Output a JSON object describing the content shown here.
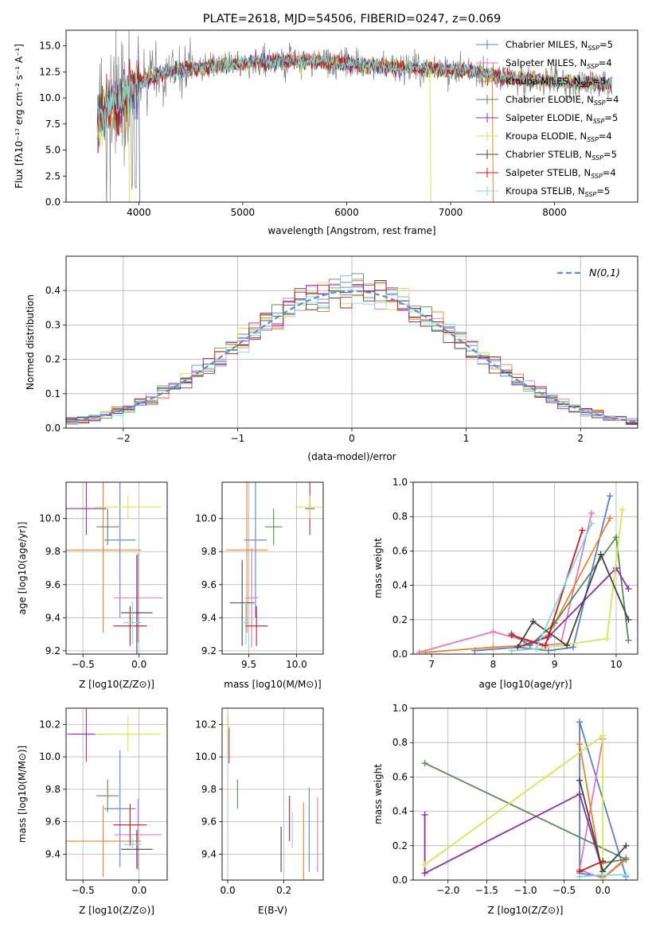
{
  "chart_data": [
    {
      "id": "spectrum",
      "type": "line",
      "title": "PLATE=2618, MJD=54506, FIBERID=0247, z=0.069",
      "xlabel": "wavelength [Angstrom, rest frame]",
      "ylabel": "Flux [fλ10⁻¹⁷ erg cm⁻² s⁻¹ A⁻¹]",
      "xlim": [
        3300,
        8800
      ],
      "ylim": [
        0,
        16.5
      ],
      "xticks": [
        4000,
        5000,
        6000,
        7000,
        8000
      ],
      "yticks": [
        0.0,
        2.5,
        5.0,
        7.5,
        10.0,
        12.5,
        15.0
      ],
      "grid": false,
      "legend_position": "right",
      "series": [
        {
          "name": "Chabrier MILES, N",
          "sub": "SSP",
          "suffix": "=5",
          "color": "#5b7fd6",
          "x_range": [
            3600,
            8550
          ]
        },
        {
          "name": "Salpeter MILES, N",
          "sub": "SSP",
          "suffix": "=4",
          "color": "#e377c2",
          "x_range": [
            3600,
            8550
          ]
        },
        {
          "name": "Kroupa MILES, N",
          "sub": "SSP",
          "suffix": "=5",
          "color": "#e8842b",
          "x_range": [
            3600,
            8550
          ]
        },
        {
          "name": "Chabrier ELODIE, N",
          "sub": "SSP",
          "suffix": "=4",
          "color": "#5a8a5a",
          "x_range": [
            3600,
            8550
          ]
        },
        {
          "name": "Salpeter ELODIE, N",
          "sub": "SSP",
          "suffix": "=5",
          "color": "#8e2fa8",
          "x_range": [
            3600,
            8550
          ]
        },
        {
          "name": "Kroupa ELODIE, N",
          "sub": "SSP",
          "suffix": "=4",
          "color": "#d4e84e",
          "x_range": [
            3600,
            8550
          ]
        },
        {
          "name": "Chabrier STELIB, N",
          "sub": "SSP",
          "suffix": "=5",
          "color": "#444444",
          "x_range": [
            3600,
            8550
          ]
        },
        {
          "name": "Salpeter STELIB, N",
          "sub": "SSP",
          "suffix": "=4",
          "color": "#c41a1a",
          "x_range": [
            3600,
            8550
          ]
        },
        {
          "name": "Kroupa STELIB, N",
          "sub": "SSP",
          "suffix": "=5",
          "color": "#7fd8e0",
          "x_range": [
            3600,
            8550
          ]
        }
      ],
      "data_series": {
        "color": "#7f7f7f",
        "x_range": [
          3600,
          8550
        ]
      },
      "continuum": {
        "x": [
          3600,
          3700,
          3900,
          4000,
          4300,
          4700,
          5000,
          5500,
          6000,
          6500,
          6800,
          7200,
          7500,
          8000,
          8550
        ],
        "y": [
          8,
          9,
          10.5,
          11.5,
          12.6,
          13.0,
          13.3,
          13.6,
          13.3,
          12.9,
          12.8,
          12.6,
          12.0,
          11.6,
          11.3
        ]
      }
    },
    {
      "id": "residuals",
      "type": "histogram",
      "xlabel": "(data-model)/error",
      "ylabel": "Normed distribution",
      "xlim": [
        -2.5,
        2.5
      ],
      "ylim": [
        0,
        0.5
      ],
      "xticks": [
        -2,
        -1,
        0,
        1,
        2
      ],
      "yticks": [
        0.0,
        0.1,
        0.2,
        0.3,
        0.4
      ],
      "grid": true,
      "legend_position": "top-right",
      "legend_label": "N(0,1)",
      "reference_curve": {
        "name": "N(0,1)",
        "color": "#5b8fd6",
        "dash": "dashed"
      },
      "bin_width": 0.1,
      "colors": [
        "#5b7fd6",
        "#e377c2",
        "#e8842b",
        "#5a8a5a",
        "#8e2fa8",
        "#d4e84e",
        "#444444",
        "#c41a1a",
        "#7fd8e0"
      ]
    },
    {
      "id": "age_vs_Z",
      "type": "errorbar",
      "xlabel": "Z [log10(Z/Z⊙)]",
      "ylabel": "age [log10(age/yr)]",
      "xlim": [
        -0.65,
        0.25
      ],
      "ylim": [
        9.18,
        10.22
      ],
      "xticks": [
        -0.5,
        0.0
      ],
      "yticks": [
        9.2,
        9.4,
        9.6,
        9.8,
        10.0
      ],
      "grid": true,
      "points": [
        {
          "x": -0.17,
          "y": 9.87,
          "xerr": 0.14,
          "yerr": 0.47,
          "color": "#5b7fd6"
        },
        {
          "x": -0.01,
          "y": 9.52,
          "xerr": 0.22,
          "yerr": 0.27,
          "color": "#e377c2"
        },
        {
          "x": -0.32,
          "y": 9.81,
          "xerr": 0.34,
          "yerr": 0.5,
          "color": "#e8842b"
        },
        {
          "x": -0.28,
          "y": 9.95,
          "xerr": 0.1,
          "yerr": 0.11,
          "color": "#5a8a5a"
        },
        {
          "x": -0.47,
          "y": 10.06,
          "xerr": 0.18,
          "yerr": 0.16,
          "color": "#8e2fa8"
        },
        {
          "x": -0.1,
          "y": 10.07,
          "xerr": 0.3,
          "yerr": 0.07,
          "color": "#d4e84e"
        },
        {
          "x": -0.02,
          "y": 9.43,
          "xerr": 0.14,
          "yerr": 0.35,
          "color": "#444444"
        },
        {
          "x": -0.08,
          "y": 9.35,
          "xerr": 0.15,
          "yerr": 0.12,
          "color": "#c41a1a"
        },
        {
          "x": -0.06,
          "y": 9.37,
          "xerr": 0.08,
          "yerr": 0.13,
          "color": "#7fd8e0"
        }
      ]
    },
    {
      "id": "age_vs_mass",
      "type": "errorbar",
      "xlabel": "mass [log10(M/M⊙)]",
      "ylabel": "",
      "xlim": [
        9.22,
        10.28
      ],
      "ylim": [
        9.18,
        10.22
      ],
      "xticks": [
        9.5,
        10.0
      ],
      "yticks": [
        9.2,
        9.4,
        9.6,
        9.8,
        10.0
      ],
      "grid": true,
      "points": [
        {
          "x": 9.57,
          "y": 9.87,
          "xerr": 0.12,
          "yerr": 0.47,
          "color": "#5b7fd6"
        },
        {
          "x": 9.53,
          "y": 9.52,
          "xerr": 0.07,
          "yerr": 0.3,
          "color": "#e377c2"
        },
        {
          "x": 9.48,
          "y": 9.81,
          "xerr": 0.22,
          "yerr": 0.5,
          "color": "#e8842b"
        },
        {
          "x": 9.76,
          "y": 9.95,
          "xerr": 0.09,
          "yerr": 0.11,
          "color": "#5a8a5a"
        },
        {
          "x": 10.14,
          "y": 10.06,
          "xerr": 0.05,
          "yerr": 0.16,
          "color": "#8e2fa8"
        },
        {
          "x": 10.14,
          "y": 10.07,
          "xerr": 0.15,
          "yerr": 0.07,
          "color": "#d4e84e"
        },
        {
          "x": 9.43,
          "y": 9.49,
          "xerr": 0.13,
          "yerr": 0.26,
          "color": "#444444"
        },
        {
          "x": 9.58,
          "y": 9.35,
          "xerr": 0.12,
          "yerr": 0.12,
          "color": "#c41a1a"
        },
        {
          "x": 9.47,
          "y": 9.37,
          "xerr": 0.04,
          "yerr": 0.13,
          "color": "#7fd8e0"
        }
      ]
    },
    {
      "id": "mw_vs_age",
      "type": "line",
      "xlabel": "age [log10(age/yr)]",
      "ylabel": "mass weight",
      "xlim": [
        6.7,
        10.35
      ],
      "ylim": [
        0,
        1.0
      ],
      "xticks": [
        7,
        8,
        9,
        10
      ],
      "yticks": [
        0.0,
        0.2,
        0.4,
        0.6,
        0.8,
        1.0
      ],
      "grid": true,
      "series": [
        {
          "color": "#5b7fd6",
          "x": [
            7.7,
            8.4,
            8.9,
            9.3,
            9.9
          ],
          "y": [
            0.02,
            0.04,
            0.02,
            0.04,
            0.92
          ]
        },
        {
          "color": "#e377c2",
          "x": [
            6.8,
            8.0,
            8.8,
            9.1,
            9.6
          ],
          "y": [
            0.01,
            0.13,
            0.05,
            0.06,
            0.82
          ]
        },
        {
          "color": "#e8842b",
          "x": [
            6.9,
            8.0,
            8.5,
            8.9,
            9.9
          ],
          "y": [
            0.01,
            0.04,
            0.05,
            0.11,
            0.79
          ]
        },
        {
          "color": "#5a8a5a",
          "x": [
            8.3,
            8.6,
            9.0,
            10.0,
            10.2
          ],
          "y": [
            0.12,
            0.05,
            0.18,
            0.68,
            0.08
          ]
        },
        {
          "color": "#8e2fa8",
          "x": [
            8.4,
            8.9,
            10.0,
            10.2
          ],
          "y": [
            0.04,
            0.1,
            0.5,
            0.38
          ]
        },
        {
          "color": "#d4e84e",
          "x": [
            8.7,
            9.1,
            9.85,
            10.1
          ],
          "y": [
            0.03,
            0.05,
            0.09,
            0.84
          ]
        },
        {
          "color": "#444444",
          "x": [
            8.4,
            8.65,
            9.2,
            9.75,
            10.2
          ],
          "y": [
            0.04,
            0.19,
            0.05,
            0.58,
            0.2
          ]
        },
        {
          "color": "#c41a1a",
          "x": [
            8.3,
            8.85,
            9.45
          ],
          "y": [
            0.11,
            0.05,
            0.72
          ]
        },
        {
          "color": "#7fd8e0",
          "x": [
            8.3,
            8.7,
            9.6
          ],
          "y": [
            0.02,
            0.03,
            0.76
          ]
        }
      ]
    },
    {
      "id": "mass_vs_Z",
      "type": "errorbar",
      "xlabel": "Z [log10(Z/Z⊙)]",
      "ylabel": "mass [log10(M/M⊙)]",
      "xlim": [
        -0.65,
        0.25
      ],
      "ylim": [
        9.24,
        10.3
      ],
      "xticks": [
        -0.5,
        0.0
      ],
      "yticks": [
        9.4,
        9.6,
        9.8,
        10.0,
        10.2
      ],
      "grid": true,
      "points": [
        {
          "x": -0.17,
          "y": 9.68,
          "xerr": 0.14,
          "yerr": 0.36,
          "color": "#5b7fd6"
        },
        {
          "x": -0.01,
          "y": 9.52,
          "xerr": 0.21,
          "yerr": 0.22,
          "color": "#e377c2"
        },
        {
          "x": -0.32,
          "y": 9.48,
          "xerr": 0.34,
          "yerr": 0.22,
          "color": "#e8842b"
        },
        {
          "x": -0.28,
          "y": 9.76,
          "xerr": 0.1,
          "yerr": 0.1,
          "color": "#5a8a5a"
        },
        {
          "x": -0.47,
          "y": 10.14,
          "xerr": 0.17,
          "yerr": 0.17,
          "color": "#8e2fa8"
        },
        {
          "x": -0.1,
          "y": 10.14,
          "xerr": 0.29,
          "yerr": 0.11,
          "color": "#d4e84e"
        },
        {
          "x": -0.02,
          "y": 9.43,
          "xerr": 0.14,
          "yerr": 0.12,
          "color": "#444444"
        },
        {
          "x": -0.08,
          "y": 9.58,
          "xerr": 0.15,
          "yerr": 0.13,
          "color": "#c41a1a"
        },
        {
          "x": -0.06,
          "y": 9.46,
          "xerr": 0.08,
          "yerr": 0.04,
          "color": "#7fd8e0"
        }
      ]
    },
    {
      "id": "mass_vs_ebv",
      "type": "errorbar",
      "xlabel": "E(B-V)",
      "ylabel": "",
      "xlim": [
        -0.02,
        0.34
      ],
      "ylim": [
        9.24,
        10.3
      ],
      "xticks": [
        0.0,
        0.2
      ],
      "yticks": [
        9.4,
        9.6,
        9.8,
        10.0,
        10.2
      ],
      "grid": true,
      "points": [
        {
          "x": 0.29,
          "y": 9.55,
          "xerr": 0,
          "yerr": 0.26,
          "color": "#5b7fd6"
        },
        {
          "x": 0.32,
          "y": 9.52,
          "xerr": 0,
          "yerr": 0.23,
          "color": "#e377c2"
        },
        {
          "x": 0.27,
          "y": 9.48,
          "xerr": 0,
          "yerr": 0.24,
          "color": "#e8842b"
        },
        {
          "x": 0.035,
          "y": 9.77,
          "xerr": 0,
          "yerr": 0.09,
          "color": "#5a8a5a"
        },
        {
          "x": 0.005,
          "y": 10.07,
          "xerr": 0,
          "yerr": 0.11,
          "color": "#8e2fa8"
        },
        {
          "x": 0.002,
          "y": 10.12,
          "xerr": 0,
          "yerr": 0.13,
          "color": "#d4e84e"
        },
        {
          "x": 0.19,
          "y": 9.43,
          "xerr": 0,
          "yerr": 0.14,
          "color": "#444444"
        },
        {
          "x": 0.22,
          "y": 9.62,
          "xerr": 0,
          "yerr": 0.14,
          "color": "#c41a1a"
        },
        {
          "x": 0.23,
          "y": 9.55,
          "xerr": 0,
          "yerr": 0.11,
          "color": "#7fd8e0"
        }
      ]
    },
    {
      "id": "mw_vs_Z",
      "type": "line",
      "xlabel": "Z [log10(Z/Z⊙)]",
      "ylabel": "mass weight",
      "xlim": [
        -2.45,
        0.45
      ],
      "ylim": [
        0,
        1.0
      ],
      "xticks": [
        -2.0,
        -1.5,
        -1.0,
        -0.5,
        0.0
      ],
      "yticks": [
        0.0,
        0.2,
        0.4,
        0.6,
        0.8,
        1.0
      ],
      "grid": true,
      "series": [
        {
          "color": "#5b7fd6",
          "x": [
            0.3,
            -0.3,
            -0.3,
            0.0
          ],
          "y": [
            0.02,
            0.92,
            0.04,
            0.02
          ]
        },
        {
          "color": "#e377c2",
          "x": [
            0.0,
            -0.3,
            0.0,
            0.3
          ],
          "y": [
            0.82,
            0.06,
            0.01,
            0.13
          ]
        },
        {
          "color": "#e8842b",
          "x": [
            -0.3,
            0.0,
            0.3
          ],
          "y": [
            0.79,
            0.01,
            0.12
          ]
        },
        {
          "color": "#5a8a5a",
          "x": [
            -2.3,
            0.3,
            0.0
          ],
          "y": [
            0.68,
            0.12,
            0.1
          ]
        },
        {
          "color": "#8e2fa8",
          "x": [
            -2.3,
            -2.3,
            -0.3,
            0.0
          ],
          "y": [
            0.38,
            0.04,
            0.5,
            0.05
          ]
        },
        {
          "color": "#d4e84e",
          "x": [
            -2.3,
            0.0,
            0.0
          ],
          "y": [
            0.09,
            0.84,
            0.01
          ]
        },
        {
          "color": "#444444",
          "x": [
            -0.3,
            0.0,
            0.3
          ],
          "y": [
            0.58,
            0.05,
            0.2
          ]
        },
        {
          "color": "#c41a1a",
          "x": [
            -0.3,
            0.0
          ],
          "y": [
            0.05,
            0.11
          ]
        },
        {
          "color": "#7fd8e0",
          "x": [
            -0.3,
            0.0,
            0.3
          ],
          "y": [
            0.02,
            0.03,
            0.03
          ]
        }
      ]
    }
  ]
}
